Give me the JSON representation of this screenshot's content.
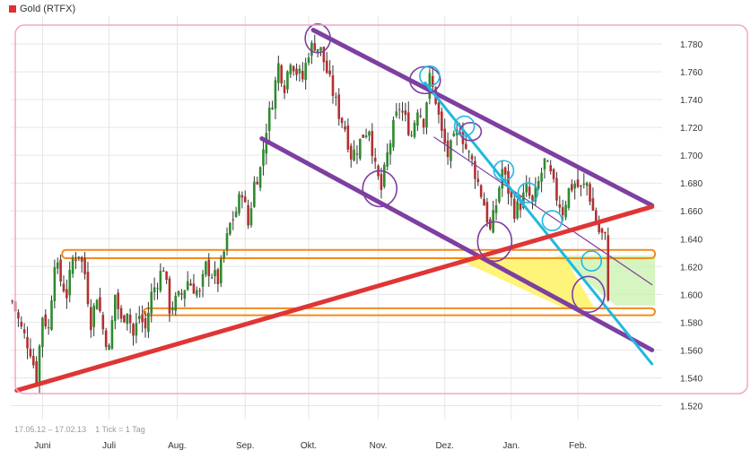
{
  "header": {
    "title": "Gold (RTFX)",
    "swatch_color": "#e03030"
  },
  "footer": {
    "range": "17.05.12 – 17.02.13",
    "tick_info": "1 Tick = 1 Tag"
  },
  "chart_data": {
    "type": "candlestick",
    "title": "Gold (RTFX)",
    "xlabel": "",
    "ylabel": "",
    "grid": true,
    "ylim": [
      1.51,
      1.8
    ],
    "y_ticks": [
      1.52,
      1.54,
      1.56,
      1.58,
      1.6,
      1.62,
      1.64,
      1.66,
      1.68,
      1.7,
      1.72,
      1.74,
      1.76,
      1.78
    ],
    "y_tick_labels": [
      "1.520",
      "1.540",
      "1.560",
      "1.580",
      "1.600",
      "1.620",
      "1.640",
      "1.660",
      "1.680",
      "1.700",
      "1.720",
      "1.740",
      "1.760",
      "1.780"
    ],
    "x_labels": [
      "Juni",
      "Juli",
      "Aug.",
      "Sep.",
      "Okt.",
      "Nov.",
      "Dez.",
      "Jan.",
      "Feb."
    ],
    "month_starts": [
      10.5,
      32.5,
      55,
      77.5,
      98.5,
      121.5,
      143.5,
      165.5,
      187.5
    ],
    "candle_count": 198,
    "close_path": [
      [
        0,
        1.595
      ],
      [
        3,
        1.575
      ],
      [
        6,
        1.56
      ],
      [
        8,
        1.54
      ],
      [
        10,
        1.585
      ],
      [
        12,
        1.575
      ],
      [
        14,
        1.625
      ],
      [
        16,
        1.61
      ],
      [
        18,
        1.6
      ],
      [
        20,
        1.625
      ],
      [
        22,
        1.63
      ],
      [
        24,
        1.615
      ],
      [
        26,
        1.58
      ],
      [
        28,
        1.6
      ],
      [
        30,
        1.575
      ],
      [
        32,
        1.56
      ],
      [
        34,
        1.6
      ],
      [
        36,
        1.58
      ],
      [
        38,
        1.59
      ],
      [
        40,
        1.57
      ],
      [
        42,
        1.585
      ],
      [
        44,
        1.575
      ],
      [
        46,
        1.6
      ],
      [
        48,
        1.61
      ],
      [
        50,
        1.62
      ],
      [
        52,
        1.59
      ],
      [
        54,
        1.595
      ],
      [
        56,
        1.6
      ],
      [
        58,
        1.61
      ],
      [
        60,
        1.605
      ],
      [
        62,
        1.6
      ],
      [
        64,
        1.62
      ],
      [
        66,
        1.615
      ],
      [
        68,
        1.61
      ],
      [
        70,
        1.63
      ],
      [
        72,
        1.65
      ],
      [
        74,
        1.66
      ],
      [
        76,
        1.675
      ],
      [
        78,
        1.65
      ],
      [
        80,
        1.68
      ],
      [
        82,
        1.69
      ],
      [
        84,
        1.72
      ],
      [
        86,
        1.74
      ],
      [
        88,
        1.765
      ],
      [
        90,
        1.75
      ],
      [
        92,
        1.77
      ],
      [
        94,
        1.76
      ],
      [
        96,
        1.755
      ],
      [
        98,
        1.775
      ],
      [
        100,
        1.78
      ],
      [
        102,
        1.775
      ],
      [
        104,
        1.76
      ],
      [
        106,
        1.745
      ],
      [
        108,
        1.73
      ],
      [
        110,
        1.72
      ],
      [
        112,
        1.7
      ],
      [
        114,
        1.705
      ],
      [
        116,
        1.715
      ],
      [
        118,
        1.72
      ],
      [
        120,
        1.69
      ],
      [
        122,
        1.675
      ],
      [
        124,
        1.7
      ],
      [
        126,
        1.72
      ],
      [
        128,
        1.735
      ],
      [
        130,
        1.725
      ],
      [
        132,
        1.715
      ],
      [
        134,
        1.735
      ],
      [
        136,
        1.725
      ],
      [
        138,
        1.755
      ],
      [
        140,
        1.74
      ],
      [
        142,
        1.715
      ],
      [
        144,
        1.7
      ],
      [
        146,
        1.71
      ],
      [
        148,
        1.72
      ],
      [
        150,
        1.705
      ],
      [
        152,
        1.695
      ],
      [
        154,
        1.68
      ],
      [
        156,
        1.665
      ],
      [
        158,
        1.645
      ],
      [
        160,
        1.665
      ],
      [
        162,
        1.69
      ],
      [
        164,
        1.675
      ],
      [
        166,
        1.66
      ],
      [
        168,
        1.665
      ],
      [
        170,
        1.675
      ],
      [
        172,
        1.665
      ],
      [
        174,
        1.68
      ],
      [
        176,
        1.695
      ],
      [
        178,
        1.685
      ],
      [
        180,
        1.67
      ],
      [
        182,
        1.66
      ],
      [
        184,
        1.675
      ],
      [
        186,
        1.68
      ],
      [
        188,
        1.675
      ],
      [
        190,
        1.68
      ],
      [
        192,
        1.66
      ],
      [
        194,
        1.645
      ],
      [
        196,
        1.64
      ],
      [
        197,
        1.6
      ]
    ],
    "annotations": {
      "support_line_red": [
        [
          2,
          1.531
        ],
        [
          212,
          1.663
        ]
      ],
      "upper_channel_purple": [
        [
          100,
          1.79
        ],
        [
          212,
          1.664
        ]
      ],
      "lower_channel_purple": [
        [
          83,
          1.712
        ],
        [
          212,
          1.56
        ]
      ],
      "thin_channel_purple": [
        [
          140,
          1.713
        ],
        [
          212,
          1.607
        ]
      ],
      "blue_trendline": [
        [
          137,
          1.752
        ],
        [
          212,
          1.55
        ]
      ],
      "orange_band_upper": [
        1.626,
        1.632
      ],
      "orange_band_lower": [
        1.585,
        1.59
      ],
      "yellow_zone_y": [
        1.627,
        1.59
      ],
      "green_zone_y": [
        1.628,
        1.592
      ]
    }
  }
}
